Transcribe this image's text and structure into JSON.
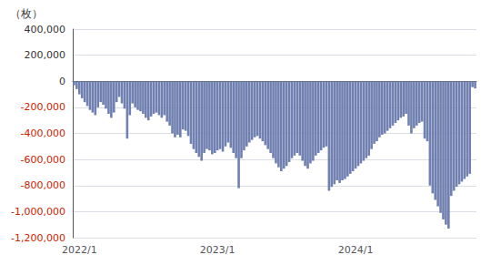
{
  "chart_data": {
    "type": "bar",
    "title": "（枚）",
    "color": "#7080b0",
    "grid": true,
    "ylim": [
      -1200000,
      400000
    ],
    "yticks": [
      {
        "value": 400000,
        "label": "400,000"
      },
      {
        "value": 200000,
        "label": "200,000"
      },
      0,
      {
        "value": -200000,
        "label": "-200,000"
      },
      {
        "value": -400000,
        "label": "-400,000"
      },
      {
        "value": -600000,
        "label": "-600,000"
      },
      {
        "value": -800000,
        "label": "-800,000"
      },
      {
        "value": -1000000,
        "label": "-1,000,000"
      },
      {
        "value": -1200000,
        "label": "-1,200,000"
      }
    ],
    "categories": [
      null,
      null,
      "2022/1",
      null,
      null,
      null,
      null,
      null,
      null,
      null,
      null,
      null,
      null,
      null,
      null,
      null,
      null,
      null,
      null,
      null,
      null,
      null,
      null,
      null,
      null,
      null,
      null,
      null,
      null,
      null,
      null,
      null,
      null,
      null,
      null,
      null,
      null,
      null,
      null,
      null,
      null,
      null,
      null,
      null,
      null,
      null,
      null,
      null,
      null,
      null,
      null,
      null,
      null,
      null,
      "2023/1",
      null,
      null,
      null,
      null,
      null,
      null,
      null,
      null,
      null,
      null,
      null,
      null,
      null,
      null,
      null,
      null,
      null,
      null,
      null,
      null,
      null,
      null,
      null,
      null,
      null,
      null,
      null,
      null,
      null,
      null,
      null,
      null,
      null,
      null,
      null,
      null,
      null,
      null,
      null,
      null,
      null,
      null,
      null,
      null,
      null,
      null,
      null,
      null,
      null,
      null,
      null,
      "2024/1",
      null,
      null,
      null,
      null,
      null,
      null,
      null,
      null,
      null,
      null,
      null,
      null,
      null,
      null,
      null,
      null,
      null,
      null,
      null,
      null,
      null,
      null,
      null,
      null,
      null,
      null,
      null,
      null,
      null,
      null,
      null,
      null,
      null,
      null,
      null,
      null,
      null,
      null,
      null,
      null,
      null,
      null,
      null,
      null,
      null
    ],
    "values": [
      -30000,
      -60000,
      -100000,
      -130000,
      -160000,
      -190000,
      -220000,
      -240000,
      -260000,
      -200000,
      -160000,
      -180000,
      -210000,
      -250000,
      -280000,
      -240000,
      -160000,
      -120000,
      -170000,
      -210000,
      -440000,
      -260000,
      -170000,
      -200000,
      -220000,
      -230000,
      -250000,
      -280000,
      -300000,
      -270000,
      -250000,
      -240000,
      -260000,
      -280000,
      -260000,
      -310000,
      -340000,
      -400000,
      -430000,
      -410000,
      -430000,
      -370000,
      -380000,
      -420000,
      -480000,
      -520000,
      -550000,
      -580000,
      -610000,
      -550000,
      -520000,
      -530000,
      -560000,
      -550000,
      -530000,
      -520000,
      -540000,
      -500000,
      -470000,
      -510000,
      -550000,
      -590000,
      -820000,
      -590000,
      -530000,
      -500000,
      -470000,
      -450000,
      -430000,
      -420000,
      -440000,
      -460000,
      -490000,
      -520000,
      -550000,
      -590000,
      -630000,
      -660000,
      -690000,
      -670000,
      -650000,
      -620000,
      -590000,
      -570000,
      -550000,
      -570000,
      -610000,
      -650000,
      -670000,
      -630000,
      -610000,
      -570000,
      -550000,
      -530000,
      -510000,
      -500000,
      -840000,
      -810000,
      -790000,
      -760000,
      -780000,
      -760000,
      -750000,
      -730000,
      -710000,
      -690000,
      -670000,
      -650000,
      -630000,
      -610000,
      -590000,
      -570000,
      -520000,
      -480000,
      -460000,
      -430000,
      -410000,
      -400000,
      -380000,
      -360000,
      -340000,
      -320000,
      -300000,
      -280000,
      -270000,
      -250000,
      -340000,
      -400000,
      -360000,
      -340000,
      -320000,
      -310000,
      -440000,
      -460000,
      -800000,
      -860000,
      -910000,
      -960000,
      -1010000,
      -1060000,
      -1100000,
      -1130000,
      -880000,
      -840000,
      -810000,
      -790000,
      -770000,
      -750000,
      -730000,
      -710000,
      -45000,
      -55000
    ]
  }
}
